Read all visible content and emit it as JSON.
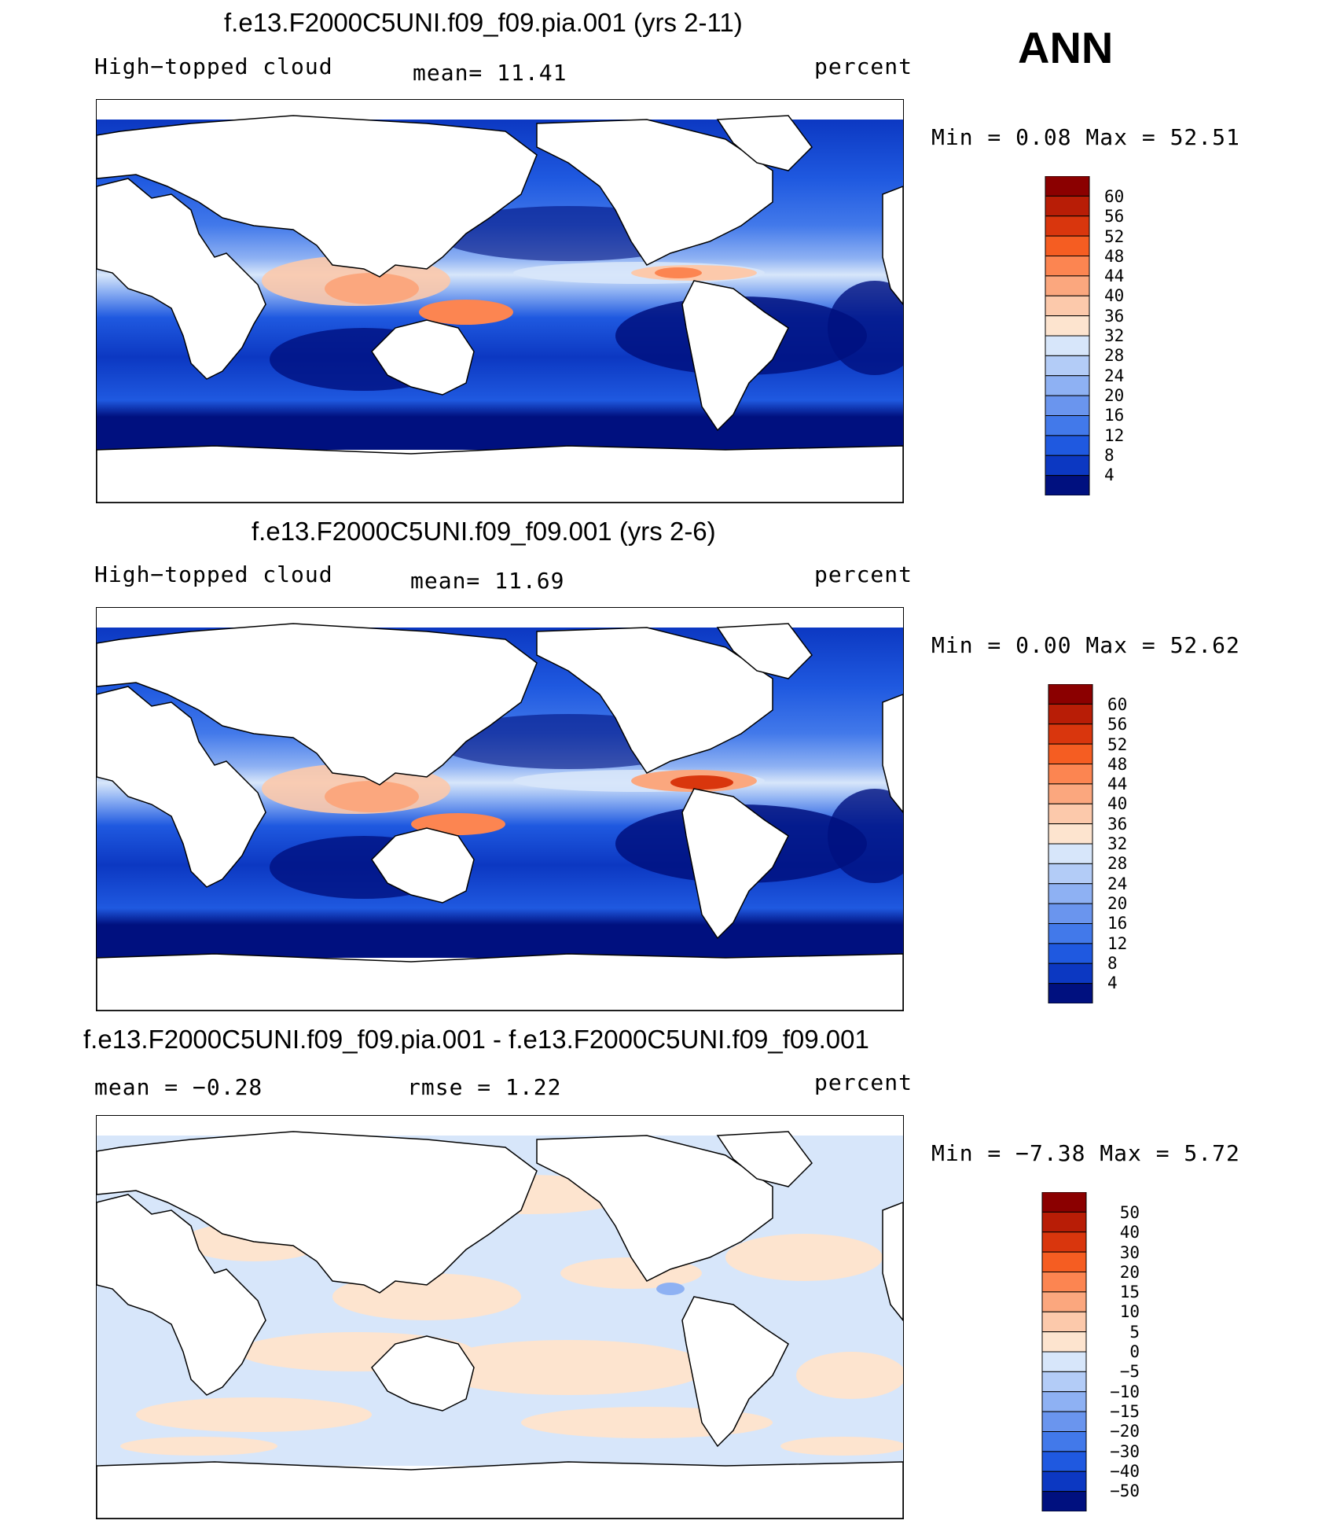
{
  "season": "ANN",
  "panels": [
    {
      "title": "f.e13.F2000C5UNI.f09_f09.pia.001 (yrs 2-11)",
      "left_label": "High−topped  cloud",
      "center_label": "mean=   11.41",
      "right_label": "percent",
      "stats": "Min  =     0.08  Max  =    52.51",
      "colorbar_levels": [
        "60",
        "56",
        "52",
        "48",
        "44",
        "40",
        "36",
        "32",
        "28",
        "24",
        "20",
        "16",
        "12",
        "8",
        "4"
      ],
      "colorbar_colors": [
        "#8b0000",
        "#b81d06",
        "#d9360d",
        "#f55d22",
        "#fc8551",
        "#fba77e",
        "#fcc9ab",
        "#fde4cf",
        "#d7e6fa",
        "#b3ccf7",
        "#8eb1f3",
        "#6a95ee",
        "#4279ea",
        "#1f59e0",
        "#0c38c2",
        "#00107f"
      ]
    },
    {
      "title": "f.e13.F2000C5UNI.f09_f09.001 (yrs 2-6)",
      "left_label": "High−topped  cloud",
      "center_label": "mean=   11.69",
      "right_label": "percent",
      "stats": "Min  =     0.00  Max  =    52.62",
      "colorbar_levels": [
        "60",
        "56",
        "52",
        "48",
        "44",
        "40",
        "36",
        "32",
        "28",
        "24",
        "20",
        "16",
        "12",
        "8",
        "4"
      ],
      "colorbar_colors": [
        "#8b0000",
        "#b81d06",
        "#d9360d",
        "#f55d22",
        "#fc8551",
        "#fba77e",
        "#fcc9ab",
        "#fde4cf",
        "#d7e6fa",
        "#b3ccf7",
        "#8eb1f3",
        "#6a95ee",
        "#4279ea",
        "#1f59e0",
        "#0c38c2",
        "#00107f"
      ]
    },
    {
      "title": "f.e13.F2000C5UNI.f09_f09.pia.001 - f.e13.F2000C5UNI.f09_f09.001",
      "left_label": "mean  =   −0.28",
      "center_label": "rmse  =     1.22",
      "right_label": "percent",
      "stats": "Min  =   −7.38  Max  =     5.72",
      "colorbar_levels": [
        "50",
        "40",
        "30",
        "20",
        "15",
        "10",
        "5",
        "0",
        "−5",
        "−10",
        "−15",
        "−20",
        "−30",
        "−40",
        "−50"
      ],
      "colorbar_colors": [
        "#8b0000",
        "#b81d06",
        "#d9360d",
        "#f55d22",
        "#fc8551",
        "#fba77e",
        "#fcc9ab",
        "#fde4cf",
        "#d7e6fa",
        "#b3ccf7",
        "#8eb1f3",
        "#6a95ee",
        "#4279ea",
        "#1f59e0",
        "#0c38c2",
        "#00107f"
      ]
    }
  ],
  "colors": {
    "ocean_deep": "#00107f",
    "ocean_mid": "#1f59e0",
    "ocean_light": "#6a95ee",
    "ocean_pale": "#b3ccf7",
    "warm_light": "#fcc9ab",
    "warm_mid": "#fc8551",
    "warm_strong": "#d9360d",
    "diff_neg": "#d7e6fa",
    "diff_pos": "#fde4cf"
  }
}
